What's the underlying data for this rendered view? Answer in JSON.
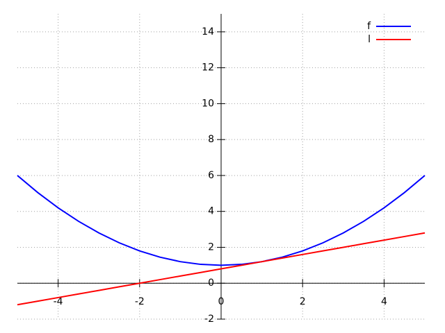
{
  "chart_data": {
    "type": "line",
    "x": [
      -5,
      -4.5,
      -4,
      -3.5,
      -3,
      -2.5,
      -2,
      -1.5,
      -1,
      -0.5,
      0,
      0.5,
      1,
      1.5,
      2,
      2.5,
      3,
      3.5,
      4,
      4.5,
      5
    ],
    "series": [
      {
        "name": "f",
        "color": "#0000ff",
        "values": [
          6,
          5.05,
          4.2,
          3.45,
          2.8,
          2.25,
          1.8,
          1.45,
          1.2,
          1.05,
          1,
          1.05,
          1.2,
          1.45,
          1.8,
          2.25,
          2.8,
          3.45,
          4.2,
          5.05,
          6
        ]
      },
      {
        "name": "l",
        "color": "#ff0000",
        "values": [
          -1.2,
          -1,
          -0.8,
          -0.6,
          -0.4,
          -0.2,
          0,
          0.2,
          0.4,
          0.6,
          0.8,
          1,
          1.2,
          1.4,
          1.6,
          1.8,
          2,
          2.2,
          2.4,
          2.6,
          2.8
        ]
      }
    ],
    "xlim": [
      -5,
      5
    ],
    "ylim": [
      -2,
      15
    ],
    "xticks": [
      -4,
      -2,
      0,
      2,
      4
    ],
    "yticks": [
      -2,
      0,
      2,
      4,
      6,
      8,
      10,
      12,
      14
    ],
    "grid": true,
    "legend": "top-right"
  }
}
